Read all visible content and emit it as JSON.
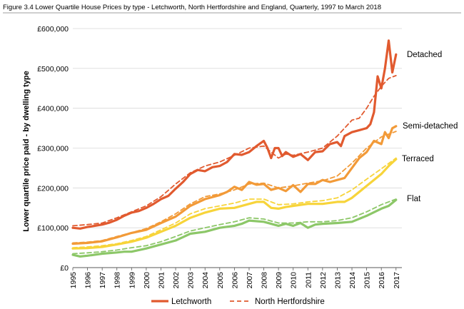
{
  "chart_data": {
    "type": "line",
    "title": "Figure 3.4 Lower Quartile House Prices by type - Letchworth, North Hertfordshire and England, Quarterly, 1997 to March 2018",
    "xlabel": "",
    "ylabel": "Lower quartile price paid - by dwelling type",
    "x_ticks": [
      "1995",
      "1996",
      "1997",
      "1998",
      "1999",
      "2000",
      "2001",
      "2002",
      "2003",
      "2004",
      "2005",
      "2006",
      "2007",
      "2008",
      "2009",
      "2010",
      "2011",
      "2012",
      "2013",
      "2014",
      "2015",
      "2016",
      "2017"
    ],
    "xlim": [
      1995,
      2017.4
    ],
    "ylim": [
      0,
      600000
    ],
    "y_ticks": [
      0,
      100000,
      200000,
      300000,
      400000,
      500000,
      600000
    ],
    "y_tick_labels": [
      "£0",
      "£100,000",
      "£200,000",
      "£300,000",
      "£400,000",
      "£500,000",
      "£600,000"
    ],
    "grid": "horizontal",
    "legend_position": "bottom",
    "legend": [
      {
        "name": "Letchworth",
        "style": "solid"
      },
      {
        "name": "North Hertfordshire",
        "style": "dashed"
      }
    ],
    "type_labels": [
      {
        "label": "Detached",
        "color": "#e15a2f"
      },
      {
        "label": "Semi-detached",
        "color": "#f29a38"
      },
      {
        "label": "Terraced",
        "color": "#f7d43a"
      },
      {
        "label": "Flat",
        "color": "#8cc768"
      }
    ],
    "colors": {
      "detached": "#e15a2f",
      "semi_detached": "#f29a38",
      "terraced": "#f7d43a",
      "flat": "#8cc768",
      "grid": "#d9d9d9",
      "axis": "#595959"
    },
    "series": [
      {
        "type": "Detached",
        "style": "solid",
        "color": "#e15a2f",
        "points": [
          [
            1995,
            100000
          ],
          [
            1995.5,
            98000
          ],
          [
            1996,
            102000
          ],
          [
            1996.5,
            105000
          ],
          [
            1997,
            108000
          ],
          [
            1997.5,
            113000
          ],
          [
            1998,
            120000
          ],
          [
            1998.5,
            130000
          ],
          [
            1999,
            138000
          ],
          [
            1999.5,
            142000
          ],
          [
            2000,
            150000
          ],
          [
            2000.5,
            160000
          ],
          [
            2001,
            172000
          ],
          [
            2001.5,
            180000
          ],
          [
            2002,
            198000
          ],
          [
            2002.5,
            215000
          ],
          [
            2003,
            235000
          ],
          [
            2003.5,
            245000
          ],
          [
            2004,
            242000
          ],
          [
            2004.5,
            252000
          ],
          [
            2005,
            255000
          ],
          [
            2005.5,
            265000
          ],
          [
            2006,
            285000
          ],
          [
            2006.5,
            283000
          ],
          [
            2007,
            290000
          ],
          [
            2007.5,
            305000
          ],
          [
            2008,
            318000
          ],
          [
            2008.25,
            300000
          ],
          [
            2008.5,
            275000
          ],
          [
            2008.75,
            300000
          ],
          [
            2009,
            300000
          ],
          [
            2009.25,
            280000
          ],
          [
            2009.5,
            290000
          ],
          [
            2010,
            278000
          ],
          [
            2010.5,
            285000
          ],
          [
            2011,
            270000
          ],
          [
            2011.5,
            290000
          ],
          [
            2012,
            292000
          ],
          [
            2012.5,
            310000
          ],
          [
            2013,
            315000
          ],
          [
            2013.25,
            305000
          ],
          [
            2013.5,
            330000
          ],
          [
            2014,
            340000
          ],
          [
            2014.5,
            345000
          ],
          [
            2015,
            350000
          ],
          [
            2015.25,
            360000
          ],
          [
            2015.5,
            390000
          ],
          [
            2015.75,
            480000
          ],
          [
            2016,
            450000
          ],
          [
            2016.25,
            500000
          ],
          [
            2016.5,
            570000
          ],
          [
            2016.75,
            490000
          ],
          [
            2017,
            535000
          ]
        ]
      },
      {
        "type": "Detached",
        "style": "dashed",
        "color": "#e15a2f",
        "points": [
          [
            1995,
            105000
          ],
          [
            1996,
            108000
          ],
          [
            1997,
            112000
          ],
          [
            1998,
            125000
          ],
          [
            1999,
            140000
          ],
          [
            2000,
            155000
          ],
          [
            2001,
            178000
          ],
          [
            2002,
            210000
          ],
          [
            2003,
            238000
          ],
          [
            2004,
            255000
          ],
          [
            2005,
            265000
          ],
          [
            2006,
            282000
          ],
          [
            2007,
            300000
          ],
          [
            2008,
            305000
          ],
          [
            2008.5,
            290000
          ],
          [
            2009,
            275000
          ],
          [
            2009.5,
            285000
          ],
          [
            2010,
            282000
          ],
          [
            2011,
            290000
          ],
          [
            2012,
            300000
          ],
          [
            2013,
            330000
          ],
          [
            2014,
            370000
          ],
          [
            2014.5,
            375000
          ],
          [
            2015,
            400000
          ],
          [
            2015.5,
            430000
          ],
          [
            2016,
            455000
          ],
          [
            2016.5,
            475000
          ],
          [
            2017,
            482000
          ]
        ]
      },
      {
        "type": "Semi-detached",
        "style": "solid",
        "color": "#f29a38",
        "points": [
          [
            1995,
            60000
          ],
          [
            1996,
            62000
          ],
          [
            1997,
            66000
          ],
          [
            1998,
            76000
          ],
          [
            1999,
            87000
          ],
          [
            2000,
            95000
          ],
          [
            2001,
            112000
          ],
          [
            2002,
            128000
          ],
          [
            2003,
            155000
          ],
          [
            2004,
            172000
          ],
          [
            2005,
            182000
          ],
          [
            2005.5,
            190000
          ],
          [
            2006,
            203000
          ],
          [
            2006.5,
            195000
          ],
          [
            2007,
            215000
          ],
          [
            2007.5,
            208000
          ],
          [
            2008,
            210000
          ],
          [
            2008.5,
            195000
          ],
          [
            2009,
            200000
          ],
          [
            2009.5,
            192000
          ],
          [
            2010,
            207000
          ],
          [
            2010.5,
            190000
          ],
          [
            2011,
            210000
          ],
          [
            2011.5,
            210000
          ],
          [
            2012,
            220000
          ],
          [
            2012.5,
            215000
          ],
          [
            2013,
            220000
          ],
          [
            2013.5,
            225000
          ],
          [
            2014,
            250000
          ],
          [
            2014.5,
            275000
          ],
          [
            2015,
            290000
          ],
          [
            2015.5,
            318000
          ],
          [
            2016,
            310000
          ],
          [
            2016.25,
            340000
          ],
          [
            2016.5,
            325000
          ],
          [
            2016.75,
            350000
          ],
          [
            2017,
            355000
          ]
        ]
      },
      {
        "type": "Semi-detached",
        "style": "dashed",
        "color": "#f29a38",
        "points": [
          [
            1995,
            62000
          ],
          [
            1996,
            64000
          ],
          [
            1997,
            68000
          ],
          [
            1998,
            78000
          ],
          [
            1999,
            88000
          ],
          [
            2000,
            98000
          ],
          [
            2001,
            115000
          ],
          [
            2002,
            135000
          ],
          [
            2003,
            160000
          ],
          [
            2004,
            178000
          ],
          [
            2005,
            185000
          ],
          [
            2006,
            195000
          ],
          [
            2007,
            210000
          ],
          [
            2008,
            212000
          ],
          [
            2009,
            200000
          ],
          [
            2010,
            205000
          ],
          [
            2011,
            212000
          ],
          [
            2012,
            218000
          ],
          [
            2013,
            230000
          ],
          [
            2014,
            262000
          ],
          [
            2015,
            300000
          ],
          [
            2016,
            328000
          ],
          [
            2016.5,
            335000
          ],
          [
            2017,
            342000
          ]
        ]
      },
      {
        "type": "Terraced",
        "style": "solid",
        "color": "#f7d43a",
        "points": [
          [
            1995,
            48000
          ],
          [
            1996,
            49000
          ],
          [
            1997,
            52000
          ],
          [
            1998,
            58000
          ],
          [
            1999,
            65000
          ],
          [
            2000,
            75000
          ],
          [
            2001,
            90000
          ],
          [
            2002,
            105000
          ],
          [
            2003,
            125000
          ],
          [
            2004,
            138000
          ],
          [
            2005,
            148000
          ],
          [
            2006,
            150000
          ],
          [
            2007,
            160000
          ],
          [
            2007.5,
            165000
          ],
          [
            2008,
            165000
          ],
          [
            2008.5,
            150000
          ],
          [
            2009,
            148000
          ],
          [
            2009.5,
            152000
          ],
          [
            2010,
            155000
          ],
          [
            2011,
            160000
          ],
          [
            2012,
            160000
          ],
          [
            2013,
            165000
          ],
          [
            2013.5,
            165000
          ],
          [
            2014,
            175000
          ],
          [
            2015,
            205000
          ],
          [
            2016,
            235000
          ],
          [
            2016.5,
            255000
          ],
          [
            2017,
            272000
          ]
        ]
      },
      {
        "type": "Terraced",
        "style": "dashed",
        "color": "#f7d43a",
        "points": [
          [
            1995,
            50000
          ],
          [
            1996,
            52000
          ],
          [
            1997,
            55000
          ],
          [
            1998,
            60000
          ],
          [
            1999,
            68000
          ],
          [
            2000,
            78000
          ],
          [
            2001,
            95000
          ],
          [
            2002,
            112000
          ],
          [
            2003,
            135000
          ],
          [
            2004,
            148000
          ],
          [
            2005,
            155000
          ],
          [
            2006,
            162000
          ],
          [
            2007,
            172000
          ],
          [
            2008,
            172000
          ],
          [
            2009,
            158000
          ],
          [
            2010,
            160000
          ],
          [
            2011,
            165000
          ],
          [
            2012,
            168000
          ],
          [
            2013,
            175000
          ],
          [
            2014,
            195000
          ],
          [
            2015,
            222000
          ],
          [
            2016,
            248000
          ],
          [
            2017,
            275000
          ]
        ]
      },
      {
        "type": "Flat",
        "style": "solid",
        "color": "#8cc768",
        "points": [
          [
            1995,
            32000
          ],
          [
            1995.5,
            28000
          ],
          [
            1996,
            30000
          ],
          [
            1997,
            35000
          ],
          [
            1998,
            38000
          ],
          [
            1998.5,
            40000
          ],
          [
            1999,
            40000
          ],
          [
            2000,
            48000
          ],
          [
            2001,
            58000
          ],
          [
            2002,
            68000
          ],
          [
            2003,
            85000
          ],
          [
            2004,
            90000
          ],
          [
            2005,
            100000
          ],
          [
            2006,
            105000
          ],
          [
            2006.5,
            110000
          ],
          [
            2007,
            118000
          ],
          [
            2008,
            115000
          ],
          [
            2009,
            105000
          ],
          [
            2009.5,
            110000
          ],
          [
            2010,
            105000
          ],
          [
            2010.5,
            112000
          ],
          [
            2011,
            100000
          ],
          [
            2011.5,
            108000
          ],
          [
            2012,
            110000
          ],
          [
            2013,
            112000
          ],
          [
            2014,
            115000
          ],
          [
            2015,
            130000
          ],
          [
            2016,
            148000
          ],
          [
            2016.5,
            155000
          ],
          [
            2017,
            170000
          ]
        ]
      },
      {
        "type": "Flat",
        "style": "dashed",
        "color": "#8cc768",
        "points": [
          [
            1995,
            35000
          ],
          [
            1996,
            37000
          ],
          [
            1997,
            40000
          ],
          [
            1998,
            44000
          ],
          [
            1999,
            50000
          ],
          [
            2000,
            55000
          ],
          [
            2001,
            65000
          ],
          [
            2002,
            78000
          ],
          [
            2003,
            92000
          ],
          [
            2004,
            100000
          ],
          [
            2005,
            108000
          ],
          [
            2006,
            115000
          ],
          [
            2007,
            125000
          ],
          [
            2008,
            122000
          ],
          [
            2009,
            112000
          ],
          [
            2010,
            112000
          ],
          [
            2011,
            115000
          ],
          [
            2012,
            115000
          ],
          [
            2013,
            118000
          ],
          [
            2014,
            125000
          ],
          [
            2015,
            140000
          ],
          [
            2016,
            158000
          ],
          [
            2017,
            172000
          ]
        ]
      }
    ]
  }
}
